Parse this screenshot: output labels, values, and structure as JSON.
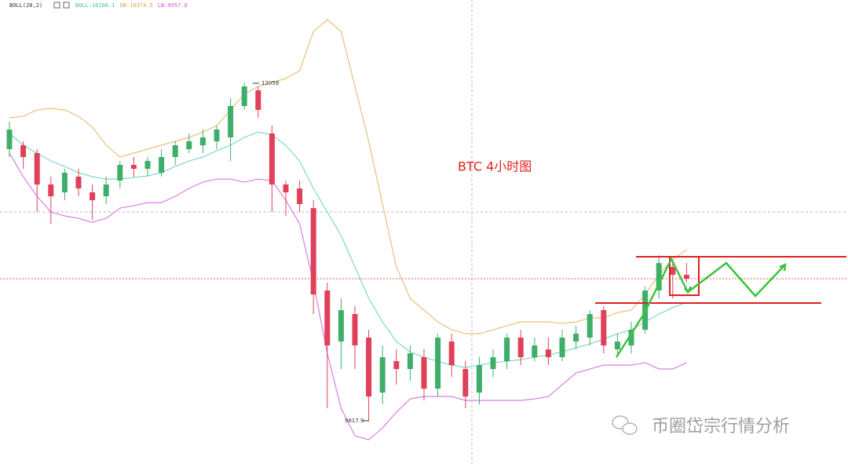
{
  "chart_data": {
    "type": "candlestick",
    "indicator": "BOLL(20,2)",
    "legend_labels": [
      "BOLL:10166.1",
      "UB:10374.5",
      "LB:9957.8"
    ],
    "annotation": "BTC 4小时图",
    "high_label": "12058",
    "low_label": "9817.9",
    "watermark": "币圈岱宗行情分析",
    "ylim": [
      9531,
      12604
    ],
    "up_color": "#3fae6b",
    "down_color": "#e0405a",
    "open": [
      11616,
      11642,
      11590,
      11382,
      11330,
      11434,
      11330,
      11304,
      11408,
      11512,
      11486,
      11460,
      11564,
      11616,
      11642,
      11668,
      11694,
      11902,
      12006,
      11720,
      11382,
      11356,
      11226,
      10680,
      10342,
      10524,
      10368,
      10004,
      10212,
      10160,
      10238,
      10030,
      10342,
      10160,
      10004,
      10160,
      10212,
      10368,
      10238,
      10290,
      10238,
      10342,
      10368,
      10550,
      10290,
      10316,
      10420,
      10680,
      10836,
      10784
    ],
    "high": [
      11798,
      11668,
      11616,
      11434,
      11486,
      11486,
      11382,
      11434,
      11538,
      11564,
      11564,
      11616,
      11668,
      11720,
      11746,
      11772,
      11954,
      12058,
      12032,
      11772,
      11408,
      11408,
      11278,
      10732,
      10628,
      10576,
      10420,
      10316,
      10290,
      10316,
      10290,
      10394,
      10394,
      10212,
      10238,
      10290,
      10394,
      10420,
      10368,
      10368,
      10420,
      10446,
      10550,
      10576,
      10394,
      10472,
      10706,
      10914,
      10888,
      10862
    ],
    "low": [
      11564,
      11486,
      11200,
      11122,
      11278,
      11304,
      11148,
      11252,
      11356,
      11434,
      11434,
      11434,
      11512,
      11590,
      11590,
      11616,
      11538,
      11876,
      11824,
      11200,
      11174,
      11200,
      10524,
      9900,
      10160,
      10160,
      9817.9,
      9926,
      10056,
      10082,
      9952,
      9978,
      10108,
      9900,
      9926,
      10108,
      10160,
      10186,
      10212,
      10186,
      10212,
      10290,
      10316,
      10264,
      10238,
      10264,
      10394,
      10628,
      10628,
      10732
    ],
    "close": [
      11746,
      11564,
      11382,
      11304,
      11460,
      11356,
      11278,
      11382,
      11512,
      11486,
      11538,
      11564,
      11642,
      11668,
      11694,
      11746,
      11902,
      12032,
      11876,
      11382,
      11330,
      11252,
      10654,
      10316,
      10550,
      10316,
      9978,
      10238,
      10160,
      10264,
      10030,
      10368,
      10186,
      9978,
      10186,
      10238,
      10368,
      10238,
      10316,
      10238,
      10368,
      10394,
      10524,
      10316,
      10342,
      10420,
      10680,
      10862,
      10784,
      10758
    ],
    "bands": [
      {
        "color": "#e8c07a",
        "values": [
          11824,
          11834,
          11876,
          11886,
          11876,
          11834,
          11762,
          11642,
          11564,
          11590,
          11616,
          11642,
          11668,
          11694,
          11730,
          11772,
          11876,
          11980,
          12032,
          12058,
          12084,
          12136,
          12396,
          12474,
          12396,
          12032,
          11668,
          11252,
          10836,
          10628,
          10550,
          10472,
          10420,
          10394,
          10394,
          10420,
          10446,
          10472,
          10472,
          10472,
          10462,
          10472,
          10498,
          10498,
          10534,
          10550,
          10654,
          10784,
          10888,
          10950
        ]
      },
      {
        "color": "#7fd8c8",
        "values": [
          11720,
          11642,
          11590,
          11538,
          11502,
          11460,
          11434,
          11418,
          11418,
          11429,
          11439,
          11460,
          11502,
          11538,
          11564,
          11606,
          11642,
          11694,
          11730,
          11710,
          11642,
          11538,
          11356,
          11200,
          11044,
          10836,
          10628,
          10472,
          10342,
          10274,
          10238,
          10212,
          10186,
          10170,
          10186,
          10202,
          10212,
          10222,
          10238,
          10254,
          10274,
          10300,
          10326,
          10358,
          10394,
          10420,
          10472,
          10524,
          10566,
          10602
        ]
      },
      {
        "color": "#d77fe0",
        "values": [
          11590,
          11434,
          11304,
          11200,
          11174,
          11158,
          11132,
          11158,
          11226,
          11242,
          11262,
          11262,
          11304,
          11356,
          11398,
          11418,
          11418,
          11398,
          11418,
          11408,
          11278,
          11122,
          10732,
          10264,
          9900,
          9718,
          9692,
          9770,
          9874,
          9962,
          9978,
          9978,
          9978,
          9952,
          9952,
          9952,
          9952,
          9952,
          9962,
          9978,
          10056,
          10134,
          10160,
          10186,
          10186,
          10186,
          10202,
          10160,
          10160,
          10202
        ]
      }
    ]
  }
}
